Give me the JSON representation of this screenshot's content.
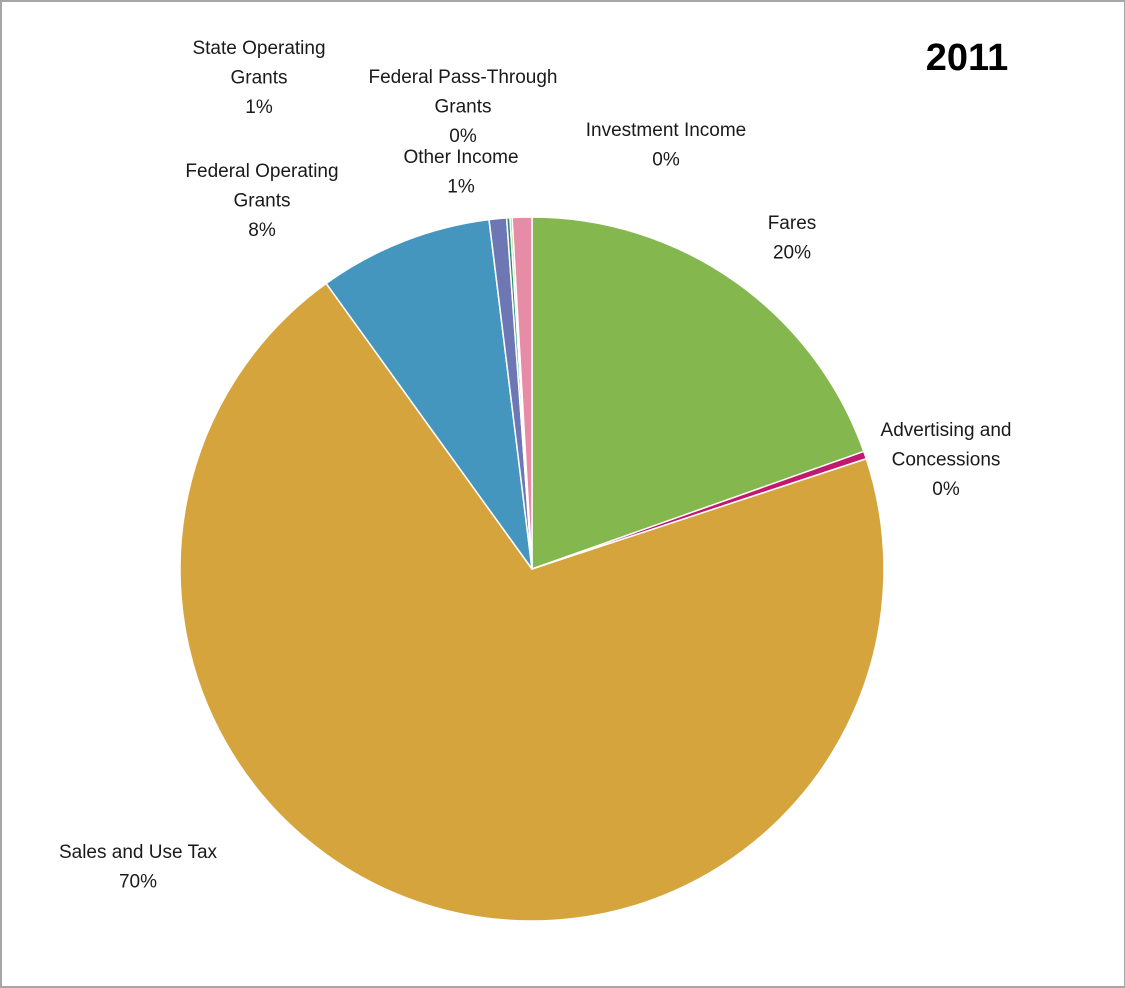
{
  "chart_data": {
    "type": "pie",
    "title": "2011",
    "start_angle_deg": 0,
    "direction": "clockwise",
    "slices": [
      {
        "name": "Fares",
        "label_lines": [
          "Fares",
          "20%"
        ],
        "value": 19.6,
        "color": "#84b74e"
      },
      {
        "name": "Advertising and Concessions",
        "label_lines": [
          "Advertising and",
          "Concessions",
          "0%"
        ],
        "value": 0.35,
        "color": "#c0196d"
      },
      {
        "name": "Sales and Use Tax",
        "label_lines": [
          "Sales and Use Tax",
          "70%"
        ],
        "value": 70.2,
        "color": "#d6a43c"
      },
      {
        "name": "Federal Operating Grants",
        "label_lines": [
          "Federal Operating",
          "Grants",
          "8%"
        ],
        "value": 8.0,
        "color": "#4496be"
      },
      {
        "name": "State Operating Grants",
        "label_lines": [
          "State Operating",
          "Grants",
          "1%"
        ],
        "value": 0.8,
        "color": "#6c77b4"
      },
      {
        "name": "Federal Pass-Through Grants",
        "label_lines": [
          "Federal Pass-Through",
          "Grants",
          "0%"
        ],
        "value": 0.15,
        "color": "#2e8c6e"
      },
      {
        "name": "Investment Income",
        "label_lines": [
          "Investment Income",
          "0%"
        ],
        "value": 0.1,
        "color": "#9ccc6a"
      },
      {
        "name": "Other Income",
        "label_lines": [
          "Other Income",
          "1%"
        ],
        "value": 0.9,
        "color": "#e68ca7"
      }
    ]
  }
}
